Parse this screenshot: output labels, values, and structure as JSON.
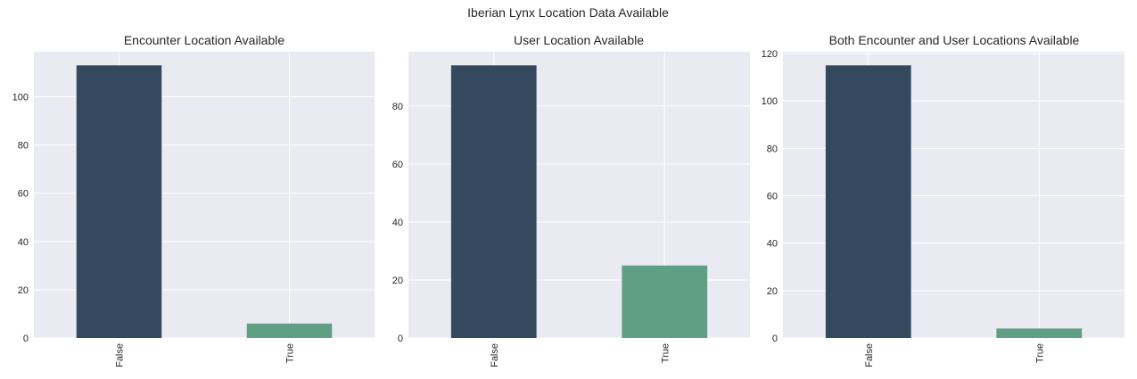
{
  "figure": {
    "title": "Iberian Lynx Location Data Available"
  },
  "style": {
    "panel_bg": "#EAEAF2",
    "grid_color": "#FFFFFF",
    "text_color": "#262626",
    "bar_colors": [
      "#34495E",
      "#5FA084"
    ]
  },
  "chart_data": [
    {
      "type": "bar",
      "title": "Encounter Location Available",
      "categories": [
        "False",
        "True"
      ],
      "values": [
        113,
        6
      ],
      "ylim": [
        0,
        118.65
      ],
      "yticks": [
        0,
        20,
        40,
        60,
        80,
        100
      ],
      "xlabel": "",
      "ylabel": "",
      "grid": true
    },
    {
      "type": "bar",
      "title": "User Location Available",
      "categories": [
        "False",
        "True"
      ],
      "values": [
        94,
        25
      ],
      "ylim": [
        0,
        98.7
      ],
      "yticks": [
        0,
        20,
        40,
        60,
        80
      ],
      "xlabel": "",
      "ylabel": "",
      "grid": true
    },
    {
      "type": "bar",
      "title": "Both Encounter and User Locations Available",
      "categories": [
        "False",
        "True"
      ],
      "values": [
        115,
        4
      ],
      "ylim": [
        0,
        120.75
      ],
      "yticks": [
        0,
        20,
        40,
        60,
        80,
        100,
        120
      ],
      "xlabel": "",
      "ylabel": "",
      "grid": true
    }
  ]
}
